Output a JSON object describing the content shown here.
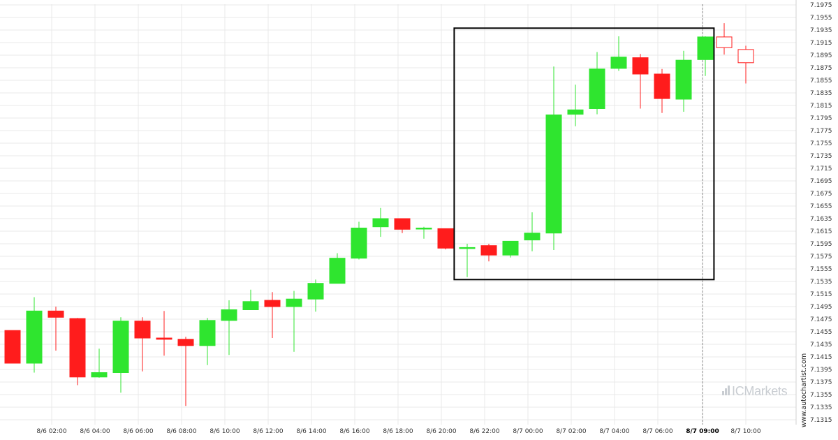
{
  "chart_data": {
    "type": "candlestick",
    "y_ticks": [
      "7.1975",
      "7.1955",
      "7.1935",
      "7.1915",
      "7.1895",
      "7.1875",
      "7.1855",
      "7.1835",
      "7.1815",
      "7.1795",
      "7.1775",
      "7.1755",
      "7.1735",
      "7.1715",
      "7.1695",
      "7.1675",
      "7.1655",
      "7.1635",
      "7.1615",
      "7.1595",
      "7.1575",
      "7.1555",
      "7.1535",
      "7.1515",
      "7.1495",
      "7.1475",
      "7.1455",
      "7.1435",
      "7.1415",
      "7.1395",
      "7.1375",
      "7.1355",
      "7.1335",
      "7.1315"
    ],
    "x_ticks": [
      "8/6 02:00",
      "8/6 04:00",
      "8/6 06:00",
      "8/6 08:00",
      "8/6 10:00",
      "8/6 12:00",
      "8/6 14:00",
      "8/6 16:00",
      "8/6 18:00",
      "8/6 20:00",
      "8/6 22:00",
      "8/7 00:00",
      "8/7 02:00",
      "8/7 04:00",
      "8/7 06:00",
      "8/7 09:00",
      "8/7 10:00"
    ],
    "current_time_label": "8/7 09:00",
    "ylim": [
      7.1315,
      7.1975
    ],
    "candles": [
      {
        "t": "8/6 01:00",
        "o": 7.1457,
        "h": 7.1457,
        "l": 7.1405,
        "c": 7.1405
      },
      {
        "t": "8/6 01:30",
        "o": 7.1405,
        "h": 7.151,
        "l": 7.139,
        "c": 7.1488
      },
      {
        "t": "8/6 02:00",
        "o": 7.1488,
        "h": 7.1495,
        "l": 7.1425,
        "c": 7.1478
      },
      {
        "t": "8/6 02:30",
        "o": 7.1476,
        "h": 7.1477,
        "l": 7.137,
        "c": 7.1383
      },
      {
        "t": "8/6 03:00",
        "o": 7.1383,
        "h": 7.1428,
        "l": 7.1382,
        "c": 7.139
      },
      {
        "t": "8/6 03:30",
        "o": 7.139,
        "h": 7.1478,
        "l": 7.1358,
        "c": 7.1472
      },
      {
        "t": "8/6 04:00",
        "o": 7.1472,
        "h": 7.1478,
        "l": 7.1392,
        "c": 7.1445
      },
      {
        "t": "8/6 04:30",
        "o": 7.1445,
        "h": 7.1488,
        "l": 7.1417,
        "c": 7.1443
      },
      {
        "t": "8/6 05:00",
        "o": 7.1443,
        "h": 7.1447,
        "l": 7.1337,
        "c": 7.1433
      },
      {
        "t": "8/6 05:30",
        "o": 7.1433,
        "h": 7.1477,
        "l": 7.1402,
        "c": 7.1473
      },
      {
        "t": "8/6 06:00",
        "o": 7.1473,
        "h": 7.1505,
        "l": 7.1418,
        "c": 7.149
      },
      {
        "t": "8/6 06:30",
        "o": 7.149,
        "h": 7.1522,
        "l": 7.149,
        "c": 7.1503
      },
      {
        "t": "8/6 07:00",
        "o": 7.1505,
        "h": 7.1518,
        "l": 7.1445,
        "c": 7.1495
      },
      {
        "t": "8/6 07:30",
        "o": 7.1495,
        "h": 7.152,
        "l": 7.1423,
        "c": 7.1507
      },
      {
        "t": "8/6 08:00",
        "o": 7.1507,
        "h": 7.1538,
        "l": 7.1487,
        "c": 7.1532
      },
      {
        "t": "8/6 08:30",
        "o": 7.1532,
        "h": 7.158,
        "l": 7.1532,
        "c": 7.1572
      },
      {
        "t": "8/6 09:00",
        "o": 7.1572,
        "h": 7.163,
        "l": 7.157,
        "c": 7.162
      },
      {
        "t": "8/6 09:30",
        "o": 7.1622,
        "h": 7.1652,
        "l": 7.1606,
        "c": 7.1635
      },
      {
        "t": "8/6 10:00",
        "o": 7.1635,
        "h": 7.1635,
        "l": 7.1612,
        "c": 7.1618
      },
      {
        "t": "8/6 10:30",
        "o": 7.162,
        "h": 7.1622,
        "l": 7.1603,
        "c": 7.162
      },
      {
        "t": "8/6 11:00",
        "o": 7.1619,
        "h": 7.1619,
        "l": 7.1586,
        "c": 7.1588
      },
      {
        "t": "8/6 11:30",
        "o": 7.1589,
        "h": 7.1595,
        "l": 7.1542,
        "c": 7.1589
      },
      {
        "t": "8/6 12:00",
        "o": 7.1592,
        "h": 7.1595,
        "l": 7.1567,
        "c": 7.1577
      },
      {
        "t": "8/6 12:30",
        "o": 7.1577,
        "h": 7.1599,
        "l": 7.1573,
        "c": 7.1599
      },
      {
        "t": "8/6 13:00",
        "o": 7.1601,
        "h": 7.1645,
        "l": 7.1583,
        "c": 7.1612
      },
      {
        "t": "8/6 13:30",
        "o": 7.1612,
        "h": 7.1877,
        "l": 7.1585,
        "c": 7.18
      },
      {
        "t": "8/6 14:00",
        "o": 7.1801,
        "h": 7.1848,
        "l": 7.1782,
        "c": 7.1808
      },
      {
        "t": "8/6 14:30",
        "o": 7.181,
        "h": 7.19,
        "l": 7.1801,
        "c": 7.1873
      },
      {
        "t": "8/6 15:00",
        "o": 7.1874,
        "h": 7.1925,
        "l": 7.187,
        "c": 7.1892
      },
      {
        "t": "8/6 15:30",
        "o": 7.1891,
        "h": 7.1897,
        "l": 7.181,
        "c": 7.1865
      },
      {
        "t": "8/6 16:00",
        "o": 7.1865,
        "h": 7.1873,
        "l": 7.1803,
        "c": 7.1826
      },
      {
        "t": "8/6 16:30",
        "o": 7.1825,
        "h": 7.1902,
        "l": 7.1805,
        "c": 7.1887
      },
      {
        "t": "8/6 17:00",
        "o": 7.1888,
        "h": 7.1925,
        "l": 7.1862,
        "c": 7.1924
      },
      {
        "t": "8/7 09:00",
        "o": 7.1907,
        "h": 7.1946,
        "l": 7.1896,
        "c": 7.1924,
        "hollow": true
      },
      {
        "t": "8/7 10:00",
        "o": 7.1904,
        "h": 7.191,
        "l": 7.185,
        "c": 7.1883,
        "hollow": true
      }
    ],
    "colors": {
      "up": "#2fe52f",
      "down": "#ff1c1c",
      "box": "#000000",
      "grid": "#e8e8e8",
      "cursor": "#888888"
    },
    "pattern_box": {
      "t_start": 20.4,
      "t_end": 32.4,
      "price_top": 7.1938,
      "price_bottom": 7.1538
    },
    "cursor_t": 32.45
  },
  "watermark": {
    "site": "www.autochartist.com",
    "brand_prefix": "IC",
    "brand_name": "Markets"
  }
}
